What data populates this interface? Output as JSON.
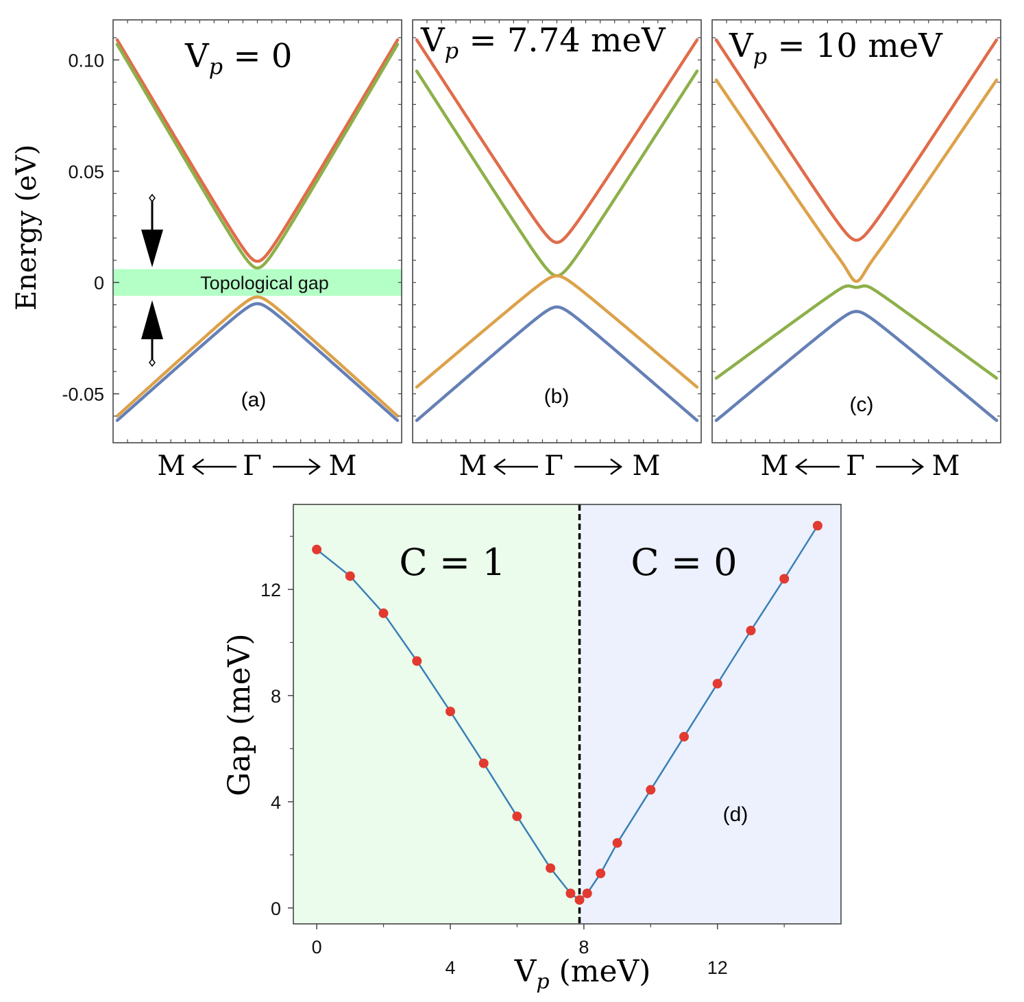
{
  "chart_data": [
    {
      "type": "line",
      "panel_label": "(a)",
      "title": "V_p = 0",
      "ylabel": "Energy (eV)",
      "x_axis_label": {
        "left": "M",
        "center": "Γ",
        "right": "M"
      },
      "yticks": [
        {
          "value": 0.1,
          "label": "0.10"
        },
        {
          "value": 0.05,
          "label": "0.05"
        },
        {
          "value": 0,
          "label": "0"
        },
        {
          "value": -0.05,
          "label": "-0.05"
        }
      ],
      "ylim": [
        -0.072,
        0.118
      ],
      "xlim": [
        -1,
        1
      ],
      "annotation": {
        "text": "Topological gap",
        "band_range": [
          -0.006,
          0.006
        ],
        "color": "#b3ffc6"
      },
      "series": [
        {
          "color": "#e06c4a",
          "edge": 0.109,
          "min": 0.0095,
          "kind": "upper"
        },
        {
          "color": "#8db04a",
          "edge": 0.107,
          "min": 0.0065,
          "kind": "upper"
        },
        {
          "color": "#dca24a",
          "edge": -0.06,
          "max": -0.0065,
          "kind": "lower"
        },
        {
          "color": "#6580b6",
          "edge": -0.062,
          "max": -0.0095,
          "kind": "lower"
        }
      ]
    },
    {
      "type": "line",
      "panel_label": "(b)",
      "title": "V_p = 7.74 meV",
      "x_axis_label": {
        "left": "M",
        "center": "Γ",
        "right": "M"
      },
      "ylim": [
        -0.072,
        0.118
      ],
      "xlim": [
        -1,
        1
      ],
      "series": [
        {
          "color": "#e06c4a",
          "edge": 0.109,
          "min": 0.018,
          "kind": "upper"
        },
        {
          "color": "#8db04a",
          "edge": 0.095,
          "min": 0.003,
          "kind": "upper"
        },
        {
          "color": "#dca24a",
          "edge": -0.047,
          "max": 0.003,
          "kind": "lower"
        },
        {
          "color": "#6580b6",
          "edge": -0.062,
          "max": -0.011,
          "kind": "lower"
        }
      ]
    },
    {
      "type": "line",
      "panel_label": "(c)",
      "title": "V_p = 10 meV",
      "x_axis_label": {
        "left": "M",
        "center": "Γ",
        "right": "M"
      },
      "ylim": [
        -0.072,
        0.118
      ],
      "xlim": [
        -1,
        1
      ],
      "series": [
        {
          "color": "#e06c4a",
          "edge": 0.109,
          "min": 0.019,
          "kind": "upper"
        },
        {
          "color": "#dca24a",
          "edge": 0.091,
          "min": 0.004,
          "kind": "upper"
        },
        {
          "color": "#8db04a",
          "edge": -0.043,
          "max": 0.0003,
          "kind": "lower"
        },
        {
          "color": "#6580b6",
          "edge": -0.062,
          "max": -0.013,
          "kind": "lower"
        }
      ]
    },
    {
      "type": "line",
      "panel_label": "(d)",
      "xlabel": "V_p (meV)",
      "ylabel": "Gap (meV)",
      "xlim": [
        -0.7,
        15.7
      ],
      "ylim": [
        -0.6,
        15.2
      ],
      "xticks": [
        0,
        4,
        8,
        12
      ],
      "yticks": [
        0,
        4,
        8,
        12
      ],
      "transition": 7.87,
      "regions": [
        {
          "label": "C = 1",
          "color": "#ebfcec"
        },
        {
          "label": "C = 0",
          "color": "#ecf1fd"
        }
      ],
      "line_color": "#3a7fb5",
      "marker_color": "#e23a30",
      "x": [
        0,
        1,
        2,
        3,
        4,
        5,
        6,
        7,
        7.6,
        7.87,
        8.1,
        8.5,
        9,
        10,
        11,
        12,
        13,
        14,
        15
      ],
      "y": [
        13.5,
        12.5,
        11.1,
        9.3,
        7.4,
        5.45,
        3.45,
        1.5,
        0.55,
        0.3,
        0.55,
        1.3,
        2.45,
        4.45,
        6.45,
        8.45,
        10.45,
        12.4,
        14.4
      ]
    }
  ]
}
